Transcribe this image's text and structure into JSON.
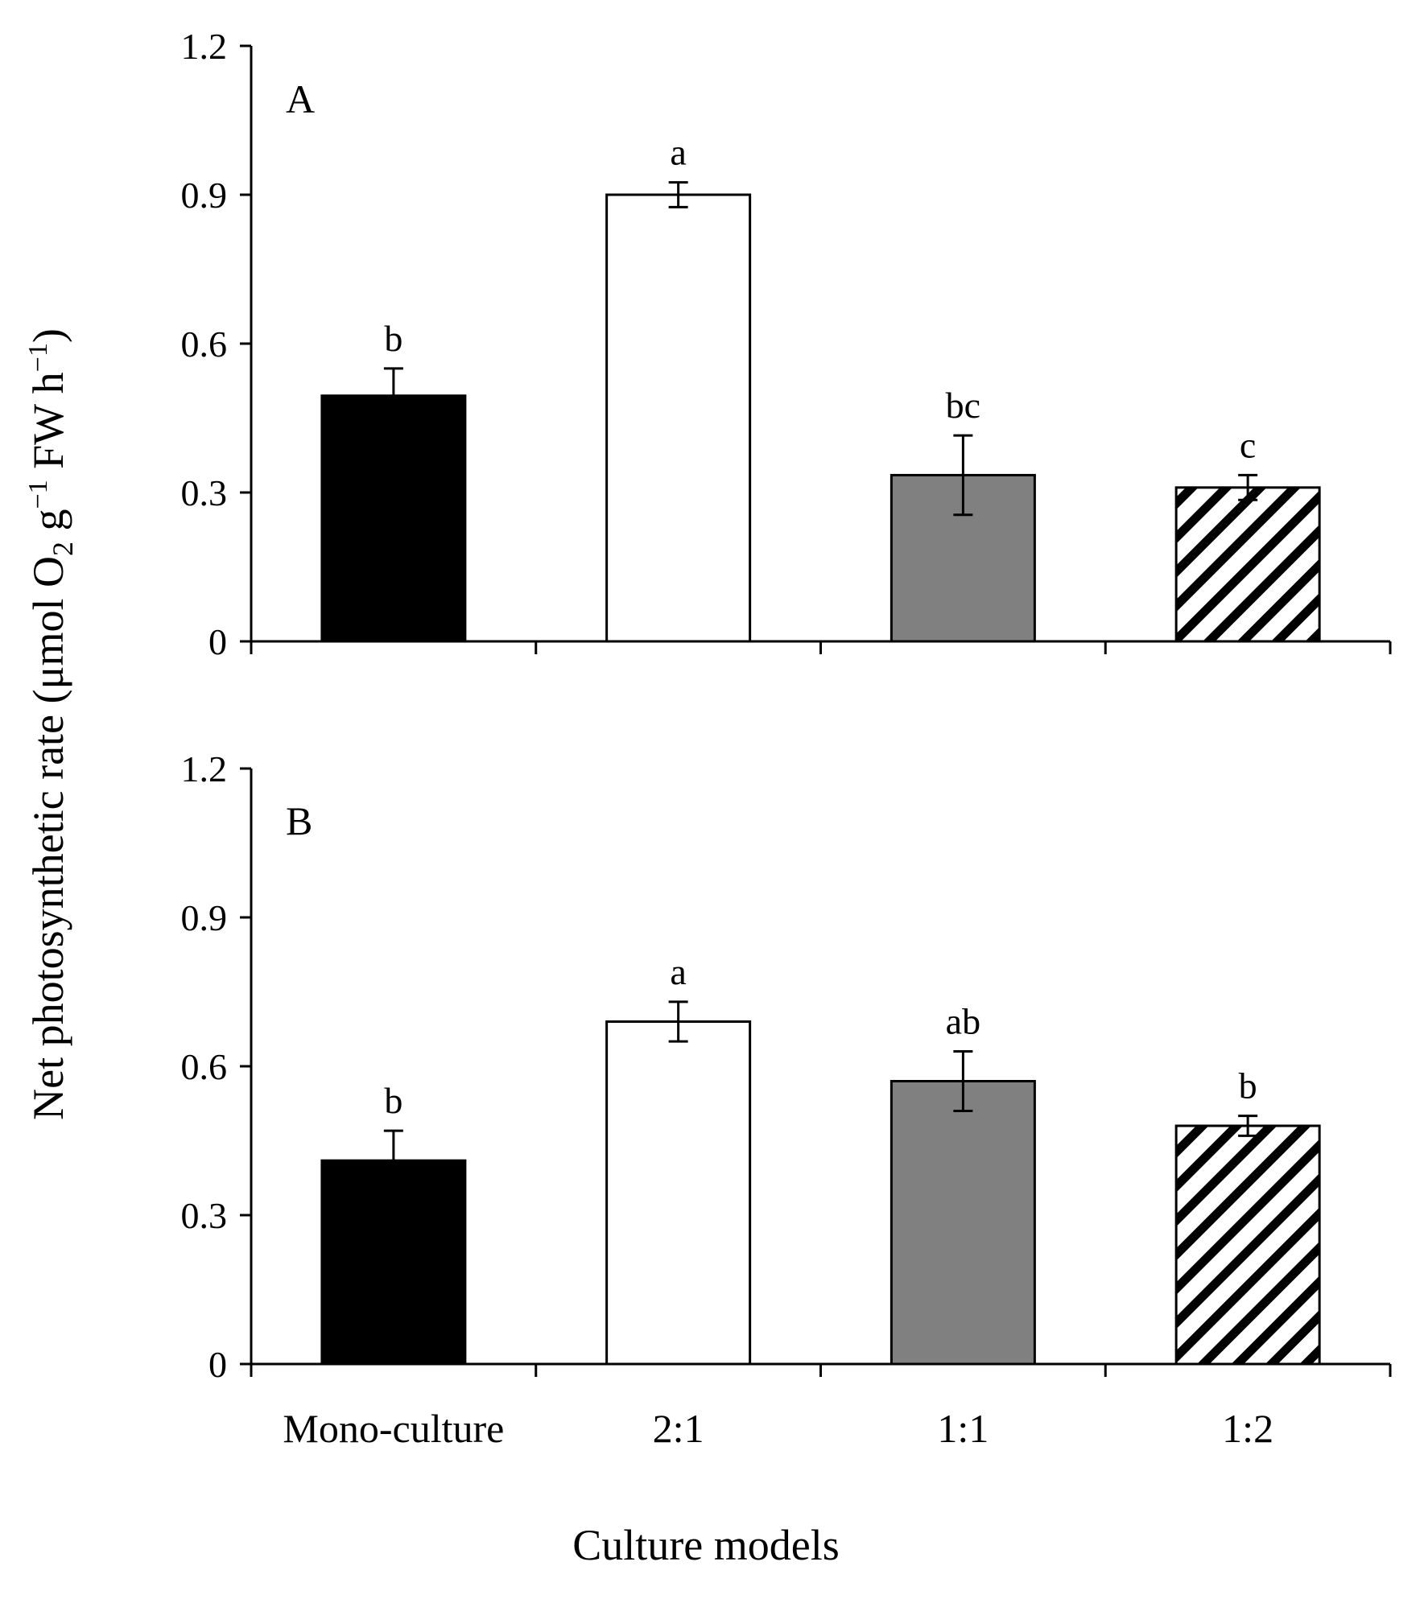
{
  "chart_data": [
    {
      "type": "bar",
      "panel": "A",
      "categories": [
        "Mono-culture",
        "2:1",
        "1:1",
        "1:2"
      ],
      "values": [
        0.495,
        0.9,
        0.335,
        0.31
      ],
      "errors": [
        0.055,
        0.025,
        0.08,
        0.025
      ],
      "significance": [
        "b",
        "a",
        "bc",
        "c"
      ],
      "bar_styles": [
        "black",
        "white",
        "gray",
        "hatched"
      ],
      "ylim": [
        0,
        1.2
      ],
      "yticks": [
        "0",
        "0.3",
        "0.6",
        "0.9",
        "1.2"
      ],
      "ytick_values": [
        0,
        0.3,
        0.6,
        0.9,
        1.2
      ]
    },
    {
      "type": "bar",
      "panel": "B",
      "categories": [
        "Mono-culture",
        "2:1",
        "1:1",
        "1:2"
      ],
      "values": [
        0.41,
        0.69,
        0.57,
        0.48
      ],
      "errors": [
        0.06,
        0.04,
        0.06,
        0.02
      ],
      "significance": [
        "b",
        "a",
        "ab",
        "b"
      ],
      "bar_styles": [
        "black",
        "white",
        "gray",
        "hatched"
      ],
      "ylim": [
        0,
        1.2
      ],
      "yticks": [
        "0",
        "0.3",
        "0.6",
        "0.9",
        "1.2"
      ],
      "ytick_values": [
        0,
        0.3,
        0.6,
        0.9,
        1.2
      ]
    }
  ],
  "colors": {
    "black": "#000000",
    "white": "#ffffff",
    "gray": "#808080",
    "hatch": "#000000"
  },
  "xlabel": "Culture models",
  "ylabel": {
    "main": "Net photosynthetic rate (μmol O",
    "sub": "2",
    "mid": " g",
    "sup1": "−1",
    "mid2": " FW h",
    "sup2": "−1",
    "end": ")"
  }
}
